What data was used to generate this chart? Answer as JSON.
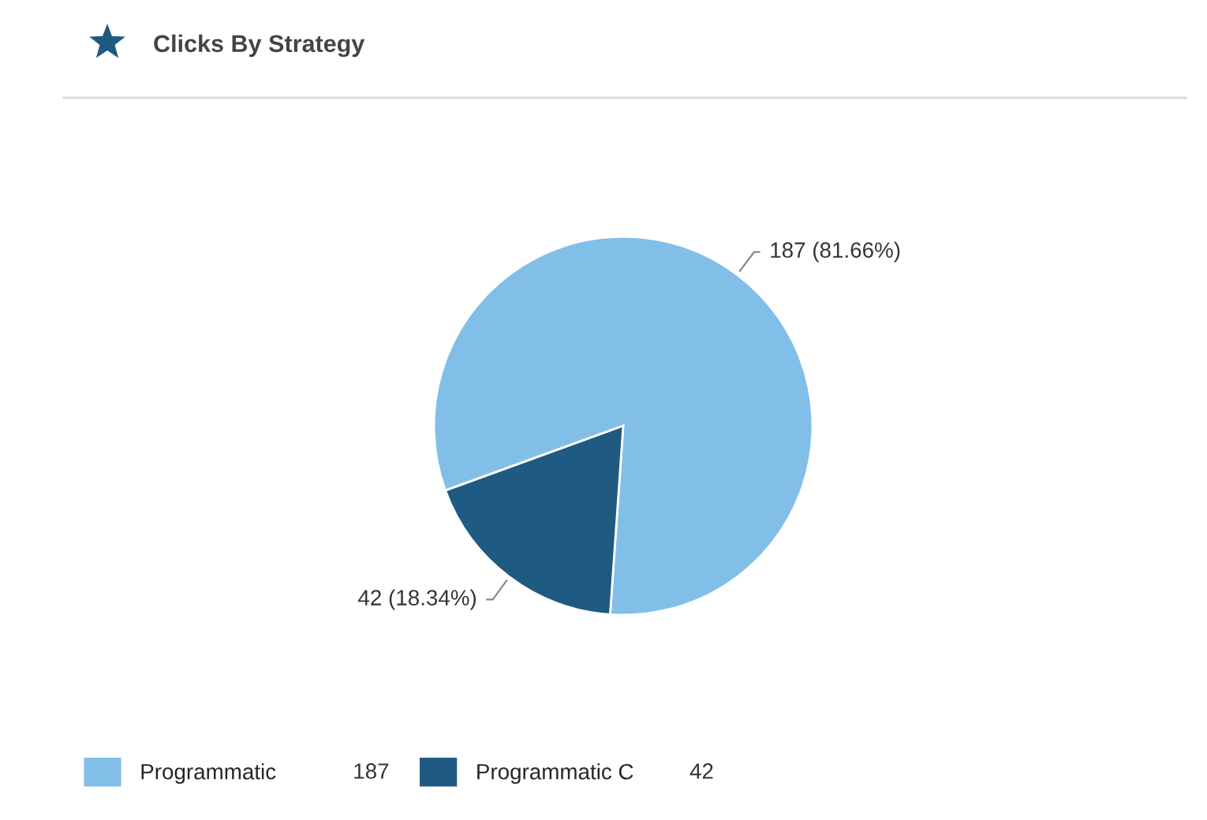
{
  "chart_data": {
    "type": "pie",
    "title": "Clicks By Strategy",
    "categories": [
      "Programmatic",
      "Programmatic C"
    ],
    "values": [
      187,
      42
    ],
    "colors": [
      "#82bfe8",
      "#1f5a82"
    ],
    "value_labels": [
      "187 (81.66%)",
      "42 (18.34%)"
    ],
    "legend": "bottom left",
    "annotations": [
      "187",
      "42"
    ]
  }
}
